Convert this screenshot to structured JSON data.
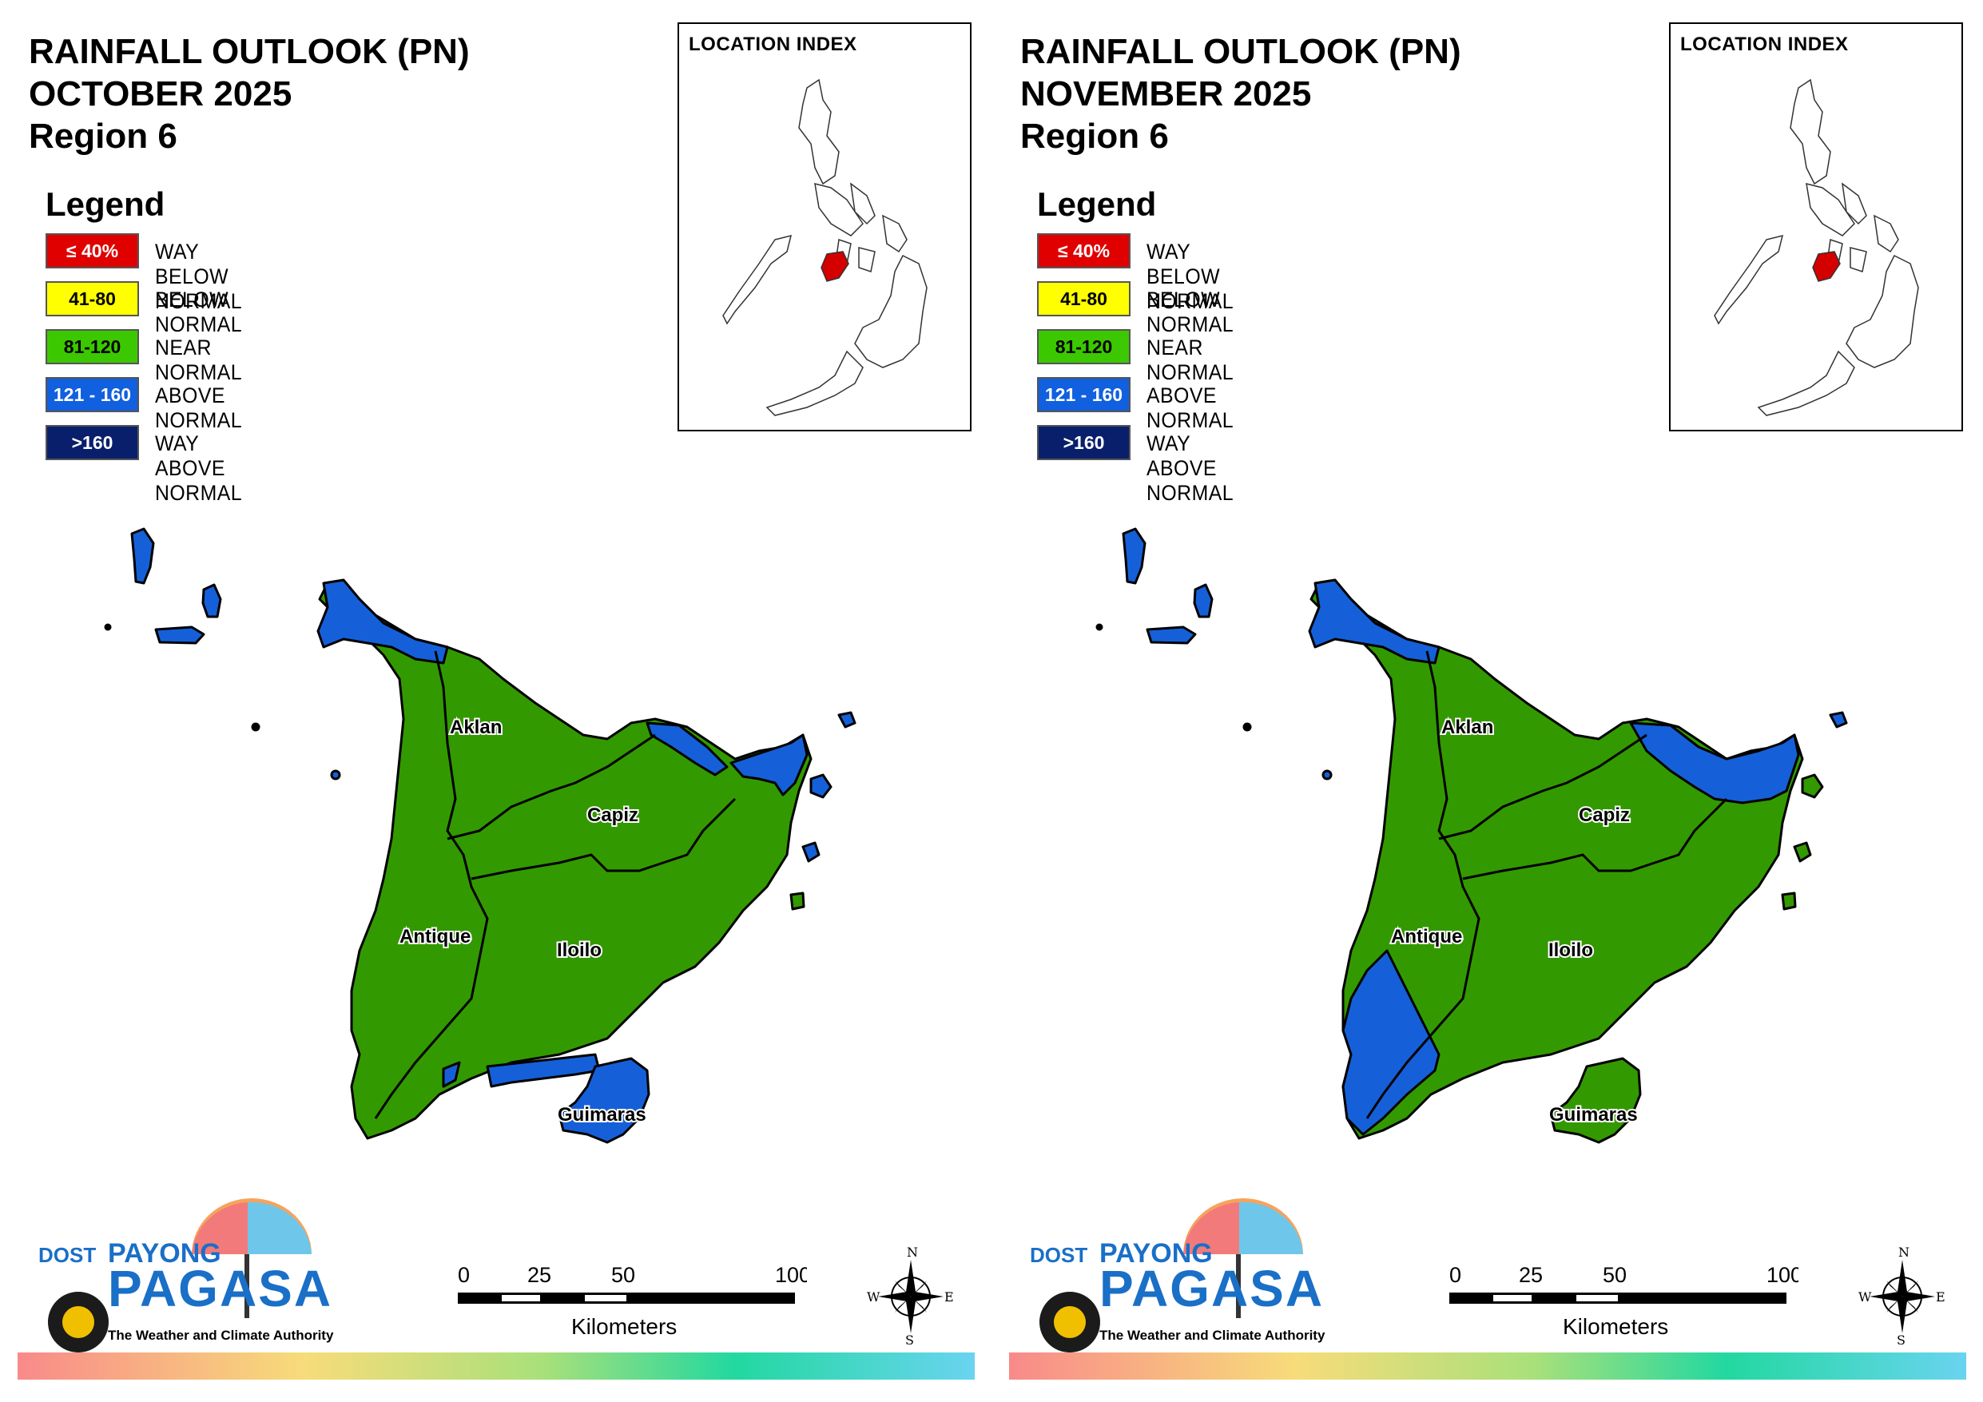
{
  "panels": [
    {
      "title_line1": "RAINFALL OUTLOOK (PN)",
      "title_line2": "OCTOBER 2025",
      "title_line3": "Region 6"
    },
    {
      "title_line1": "RAINFALL OUTLOOK (PN)",
      "title_line2": "NOVEMBER 2025",
      "title_line3": "Region 6"
    }
  ],
  "legend": {
    "title": "Legend",
    "items": [
      {
        "range": "≤ 40%",
        "label": "WAY BELOW NORMAL",
        "color": "#e00000",
        "text_color": "#ffffff"
      },
      {
        "range": "41-80",
        "label": "BELOW NORMAL",
        "color": "#ffff00",
        "text_color": "#000000"
      },
      {
        "range": "81-120",
        "label": "NEAR NORMAL",
        "color": "#3cc800",
        "text_color": "#000000"
      },
      {
        "range": "121 - 160",
        "label": "ABOVE NORMAL",
        "color": "#1060e0",
        "text_color": "#ffffff"
      },
      {
        "range": ">160",
        "label": "WAY ABOVE NORMAL",
        "color": "#0a1f6b",
        "text_color": "#ffffff"
      }
    ]
  },
  "location_index": {
    "title": "LOCATION INDEX"
  },
  "places": {
    "aklan": "Aklan",
    "capiz": "Capiz",
    "antique": "Antique",
    "iloilo": "Iloilo",
    "guimaras": "Guimaras"
  },
  "scale": {
    "ticks": [
      "0",
      "25",
      "50",
      "100"
    ],
    "unit": "Kilometers"
  },
  "compass": {
    "n": "N",
    "s": "S",
    "e": "E",
    "w": "W"
  },
  "logo": {
    "dost": "DOST",
    "payong": "PAYONG",
    "pagasa": "PAGASA",
    "tagline": "The Weather and Climate Authority"
  },
  "colors": {
    "near_normal": "#339900",
    "above_normal": "#1560d8",
    "highlight_region": "#d40000"
  }
}
